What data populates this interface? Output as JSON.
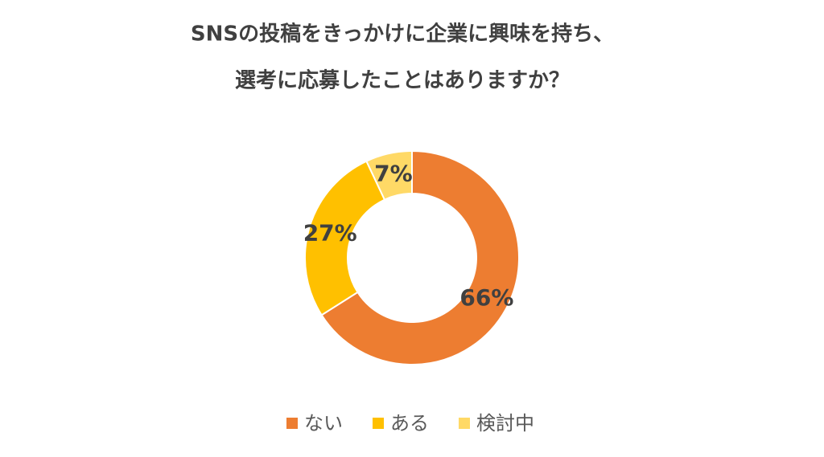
{
  "chart_data": {
    "type": "doughnut",
    "title": [
      "SNSの投稿をきっかけに企業に興味を持ち、",
      "選考に応募したことはありますか？"
    ],
    "categories": [
      "ない",
      "ある",
      "検討中"
    ],
    "values": [
      66,
      27,
      7
    ],
    "value_labels": [
      "66%",
      "27%",
      "7%"
    ],
    "colors": [
      "#ed7d31",
      "#ffc000",
      "#ffd966"
    ],
    "legend": "bottom"
  }
}
